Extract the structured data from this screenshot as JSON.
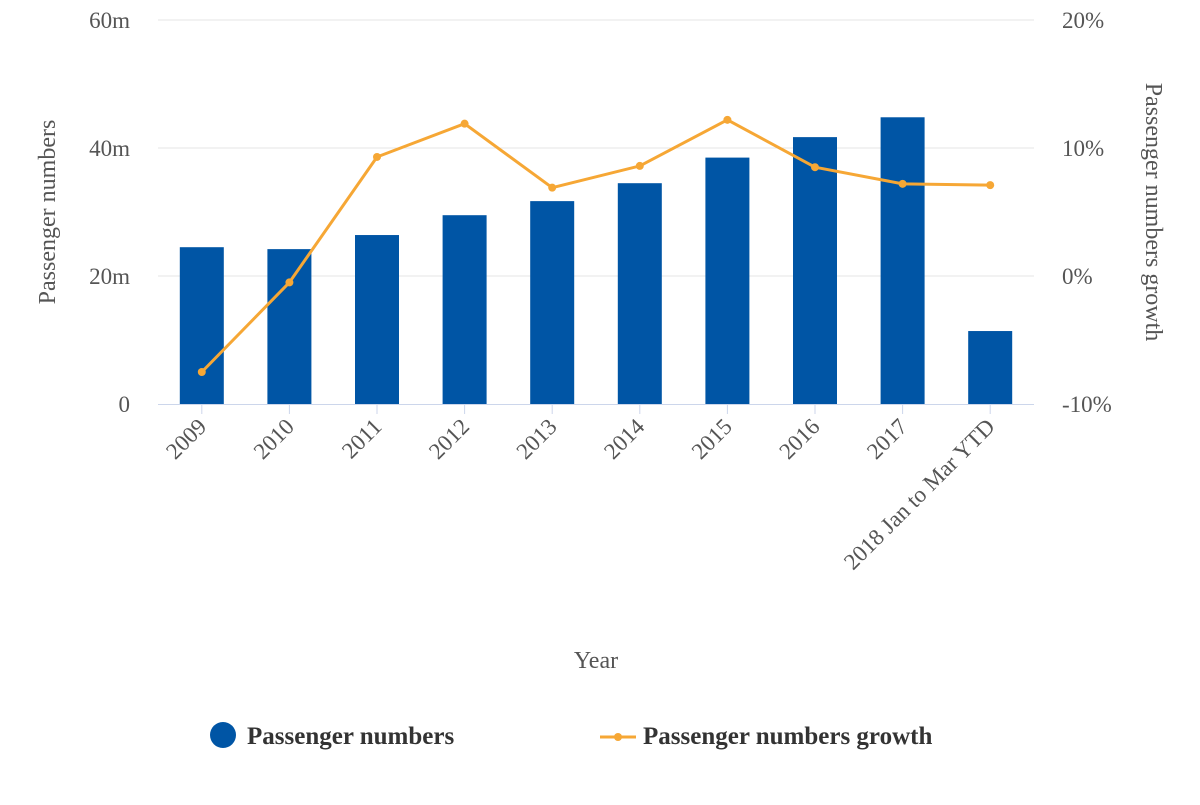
{
  "chart_data": {
    "type": "bar+line",
    "title": "",
    "xlabel": "Year",
    "categories": [
      "2009",
      "2010",
      "2011",
      "2012",
      "2013",
      "2014",
      "2015",
      "2016",
      "2017",
      "2018 Jan to Mar YTD"
    ],
    "y_left": {
      "label": "Passenger numbers",
      "range": [
        0,
        60
      ],
      "ticks": [
        0,
        20,
        40,
        60
      ],
      "tick_labels": [
        "0",
        "20m",
        "40m",
        "60m"
      ]
    },
    "y_right": {
      "label": "Passenger numbers growth",
      "range": [
        -10,
        20
      ],
      "ticks": [
        -10,
        0,
        10,
        20
      ],
      "tick_labels": [
        "-10%",
        "0%",
        "10%",
        "20%"
      ]
    },
    "series": [
      {
        "name": "Passenger numbers",
        "type": "bar",
        "axis": "left",
        "color": "#0055a5",
        "values": [
          24.5,
          24.2,
          26.4,
          29.5,
          31.7,
          34.5,
          38.5,
          41.7,
          44.8,
          11.4
        ]
      },
      {
        "name": "Passenger numbers growth",
        "type": "line",
        "axis": "right",
        "color": "#f6a735",
        "values": [
          -7.5,
          -0.5,
          9.3,
          11.9,
          6.9,
          8.6,
          12.2,
          8.5,
          7.2,
          7.1
        ]
      }
    ],
    "grid": true,
    "legend": "bottom"
  }
}
